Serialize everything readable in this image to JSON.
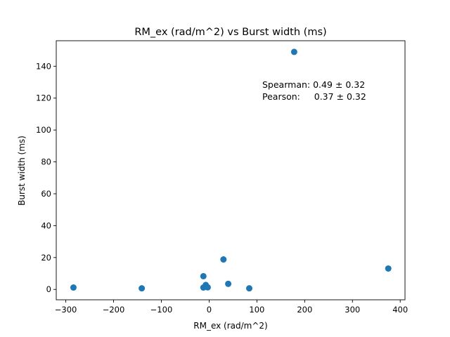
{
  "chart_data": {
    "type": "scatter",
    "title": "RM_ex (rad/m^2) vs Burst width (ms)",
    "xlabel": "RM_ex (rad/m^2)",
    "ylabel": "Burst width (ms)",
    "xlim": [
      -320,
      410
    ],
    "ylim": [
      -6.5,
      156
    ],
    "xticks": [
      -300,
      -200,
      -100,
      0,
      100,
      200,
      300,
      400
    ],
    "yticks": [
      0,
      20,
      40,
      60,
      80,
      100,
      120,
      140
    ],
    "xtick_labels": [
      "−300",
      "−200",
      "−100",
      "0",
      "100",
      "200",
      "300",
      "400"
    ],
    "ytick_labels": [
      "0",
      "20",
      "40",
      "60",
      "80",
      "100",
      "120",
      "140"
    ],
    "grid": false,
    "marker_color": "#1f77b4",
    "points": [
      {
        "x": -284,
        "y": 1.2
      },
      {
        "x": -141,
        "y": 0.7
      },
      {
        "x": -12,
        "y": 8.3
      },
      {
        "x": -12,
        "y": 1.2
      },
      {
        "x": -7,
        "y": 2.8
      },
      {
        "x": -3,
        "y": 1.3
      },
      {
        "x": 30,
        "y": 18.8
      },
      {
        "x": 40,
        "y": 3.5
      },
      {
        "x": 84,
        "y": 0.7
      },
      {
        "x": 178,
        "y": 149
      },
      {
        "x": 375,
        "y": 13.1
      }
    ],
    "annotation": {
      "line1": "Spearman: 0.49 ± 0.32",
      "line2": "Pearson:     0.37 ± 0.32"
    }
  }
}
